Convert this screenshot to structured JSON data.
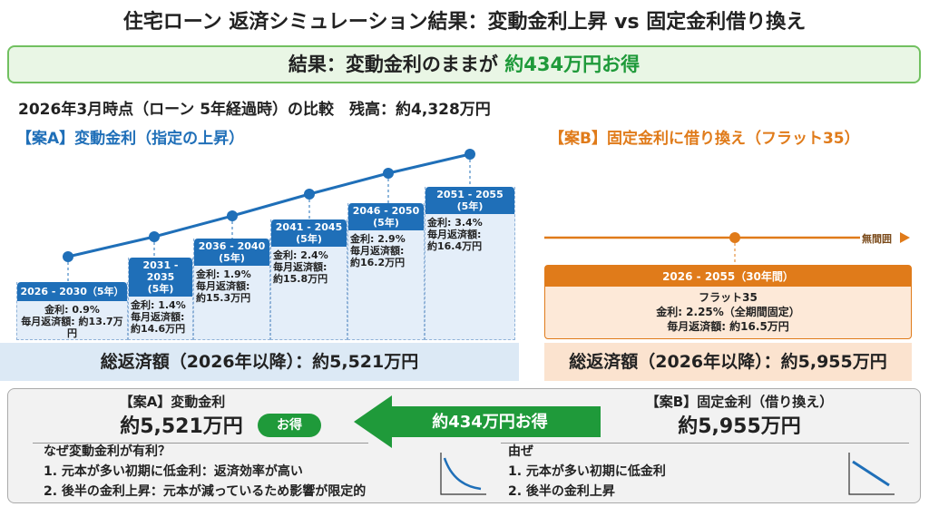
{
  "title": "住宅ローン 返済シミュレーション結果：変動金利上昇 vs 固定金利借り換え",
  "result": {
    "prefix": "結果：変動金利のままが",
    "highlight": "約434万円お得"
  },
  "subtitle": "2026年3月時点（ローン 5年経過時）の比較　残高：約4,328万円",
  "plan_a": {
    "label": "【案A】変動金利（指定の上昇）",
    "steps": [
      {
        "period": "2026 - 2030（5年）",
        "rate": "金利: 0.9%",
        "monthly_label": "毎月返済額:",
        "monthly": "約13.7万円"
      },
      {
        "period": "2031 - 2035",
        "years": "(5年)",
        "rate": "金利: 1.4%",
        "monthly_label": "毎月返済額:",
        "monthly": "約14.6万円"
      },
      {
        "period": "2036 - 2040",
        "years": "(5年)",
        "rate": "金利: 1.9%",
        "monthly_label": "毎月返済額:",
        "monthly": "約15.3万円"
      },
      {
        "period": "2041 - 2045",
        "years": "(5年)",
        "rate": "金利: 2.4%",
        "monthly_label": "毎月返済額:",
        "monthly": "約15.8万円"
      },
      {
        "period": "2046 - 2050",
        "years": "(5年)",
        "rate": "金利: 2.9%",
        "monthly_label": "毎月返済額:",
        "monthly": "約16.2万円"
      },
      {
        "period": "2051 - 2055",
        "years": "(5年)",
        "rate": "金利: 3.4%",
        "monthly_label": "毎月返済額:",
        "monthly": "約16.4万円"
      }
    ],
    "total": "総返済額（2026年以降）：約5,521万円"
  },
  "plan_b": {
    "label": "【案B】固定金利に借り換え（フラット35）",
    "timeline_label": "無間囲",
    "period": "2026 - 2055（30年間）",
    "product": "フラット35",
    "rate": "金利: 2.25%（全期間固定）",
    "monthly": "毎月返済額: 約16.5万円",
    "total": "総返済額（2026年以降）：約5,955万円"
  },
  "summary": {
    "a_label": "【案A】変動金利",
    "a_amount": "約5,521万円",
    "badge": "お得",
    "arrow": "約434万円お得",
    "b_label": "【案B】固定金利（借り換え）",
    "b_amount": "約5,955万円",
    "a_reasons": [
      "なぜ変動金利が有利？",
      "1.  元本が多い初期に低金利：返済効率が高い",
      "2.  後半の金利上昇：元本が減っているため影響が限定的"
    ],
    "b_reasons": [
      "由ぜ",
      "1.  元本が多い初期に低金利",
      "2.  後半の金利上昇"
    ]
  },
  "colors": {
    "blue": "#1f6fb8",
    "orange": "#e07b1a",
    "green": "#1f9a3a"
  }
}
